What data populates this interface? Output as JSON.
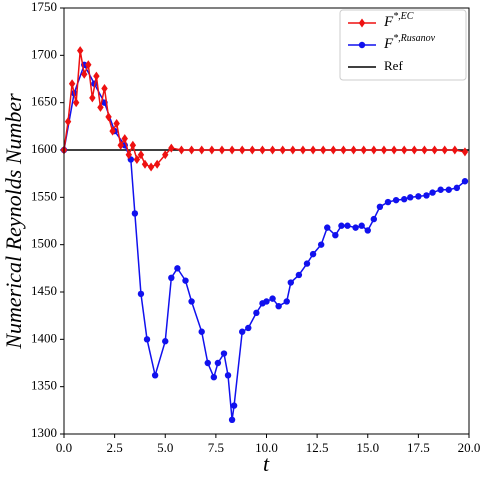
{
  "chart_data": {
    "type": "line",
    "x_label": "t",
    "y_label": "Numerical Reynolds Number",
    "xlim": [
      0,
      20
    ],
    "ylim": [
      1300,
      1750
    ],
    "xticks": [
      {
        "value": 0,
        "label": "0.0"
      },
      2.5,
      {
        "value": 5,
        "label": "5.0"
      },
      7.5,
      {
        "value": 10,
        "label": "10.0"
      },
      12.5,
      {
        "value": 15,
        "label": "15.0"
      },
      17.5,
      {
        "value": 20,
        "label": "20.0"
      }
    ],
    "yticks": [
      1300,
      1350,
      1400,
      1450,
      1500,
      1550,
      1600,
      1650,
      1700,
      1750
    ],
    "legend": "upper right",
    "series": [
      {
        "name": "F",
        "superscript": "*,EC",
        "color": "#ee1111",
        "marker": "diamond",
        "x": [
          0,
          0.2,
          0.4,
          0.6,
          0.8,
          1.0,
          1.2,
          1.4,
          1.6,
          1.8,
          2.0,
          2.2,
          2.4,
          2.6,
          2.8,
          3.0,
          3.2,
          3.4,
          3.6,
          3.8,
          4.0,
          4.3,
          4.6,
          5.0,
          5.3,
          5.8,
          6.3,
          6.8,
          7.3,
          7.8,
          8.3,
          8.8,
          9.3,
          9.8,
          10.3,
          10.8,
          11.3,
          11.8,
          12.3,
          12.8,
          13.3,
          13.8,
          14.3,
          14.8,
          15.3,
          15.8,
          16.3,
          16.8,
          17.3,
          17.8,
          18.3,
          18.8,
          19.3,
          19.8
        ],
        "values": [
          1600,
          1630,
          1670,
          1650,
          1705,
          1680,
          1690,
          1655,
          1678,
          1645,
          1665,
          1635,
          1620,
          1628,
          1605,
          1612,
          1595,
          1605,
          1590,
          1595,
          1585,
          1582,
          1585,
          1595,
          1602,
          1600,
          1600,
          1600,
          1600,
          1600,
          1600,
          1600,
          1600,
          1600,
          1600,
          1600,
          1600,
          1600,
          1600,
          1600,
          1600,
          1600,
          1600,
          1600,
          1600,
          1600,
          1600,
          1600,
          1600,
          1600,
          1600,
          1600,
          1600,
          1598
        ]
      },
      {
        "name": "F",
        "superscript": "*,Rusanov",
        "color": "#1111ee",
        "marker": "circle",
        "x": [
          0,
          0.5,
          1.0,
          1.5,
          2.0,
          2.5,
          3.0,
          3.3,
          3.5,
          3.8,
          4.1,
          4.5,
          5.0,
          5.3,
          5.6,
          6.0,
          6.3,
          6.8,
          7.1,
          7.4,
          7.6,
          7.9,
          8.1,
          8.3,
          8.4,
          8.8,
          9.1,
          9.5,
          9.8,
          10.0,
          10.3,
          10.6,
          11.0,
          11.2,
          11.6,
          12.0,
          12.3,
          12.7,
          13.0,
          13.4,
          13.7,
          14.0,
          14.4,
          14.7,
          15.0,
          15.3,
          15.6,
          16.0,
          16.4,
          16.8,
          17.1,
          17.5,
          17.9,
          18.2,
          18.6,
          19.0,
          19.4,
          19.8
        ],
        "values": [
          1600,
          1660,
          1690,
          1670,
          1650,
          1620,
          1605,
          1590,
          1533,
          1448,
          1400,
          1362,
          1398,
          1465,
          1475,
          1462,
          1440,
          1408,
          1375,
          1360,
          1375,
          1385,
          1362,
          1315,
          1330,
          1408,
          1412,
          1428,
          1438,
          1440,
          1443,
          1435,
          1440,
          1460,
          1468,
          1480,
          1490,
          1500,
          1518,
          1510,
          1520,
          1520,
          1518,
          1520,
          1515,
          1527,
          1540,
          1545,
          1547,
          1548,
          1550,
          1551,
          1552,
          1555,
          1558,
          1558,
          1560,
          1567
        ]
      },
      {
        "name": "Ref",
        "color": "#000000",
        "marker": "none",
        "x": [
          0,
          20
        ],
        "values": [
          1600,
          1600
        ]
      }
    ]
  }
}
